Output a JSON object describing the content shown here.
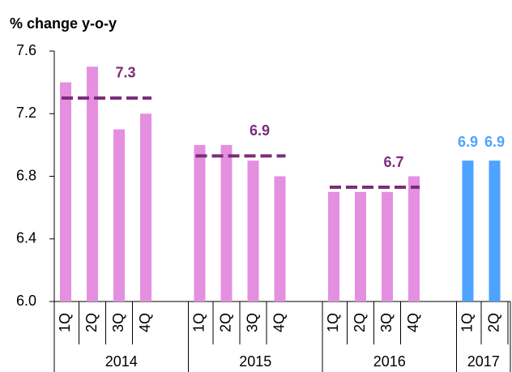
{
  "chart_data": {
    "type": "bar",
    "ylabel": "% change y-o-y",
    "ylim": [
      6.0,
      7.6
    ],
    "yticks": [
      {
        "value": 6.0,
        "label": "6.0"
      },
      6.4,
      6.8,
      7.2,
      7.6
    ],
    "average_color": "#7b2d7b",
    "groups": [
      {
        "name": "2014",
        "categories": [
          "1Q",
          "2Q",
          "3Q",
          "4Q"
        ],
        "values": [
          7.4,
          7.5,
          7.1,
          7.2
        ],
        "color": "#e58fe0",
        "average": 7.3,
        "average_label": "7.3"
      },
      {
        "name": "2015",
        "categories": [
          "1Q",
          "2Q",
          "3Q",
          "4Q"
        ],
        "values": [
          7.0,
          7.0,
          6.9,
          6.8
        ],
        "color": "#e58fe0",
        "average": 6.93,
        "average_label": "6.9"
      },
      {
        "name": "2016",
        "categories": [
          "1Q",
          "2Q",
          "3Q",
          "4Q"
        ],
        "values": [
          6.7,
          6.7,
          6.7,
          6.8
        ],
        "color": "#e58fe0",
        "average": 6.73,
        "average_label": "6.7"
      },
      {
        "name": "2017",
        "categories": [
          "1Q",
          "2Q"
        ],
        "values": [
          6.9,
          6.9
        ],
        "color": "#4da3ff",
        "labels_on_bars": true
      }
    ]
  }
}
